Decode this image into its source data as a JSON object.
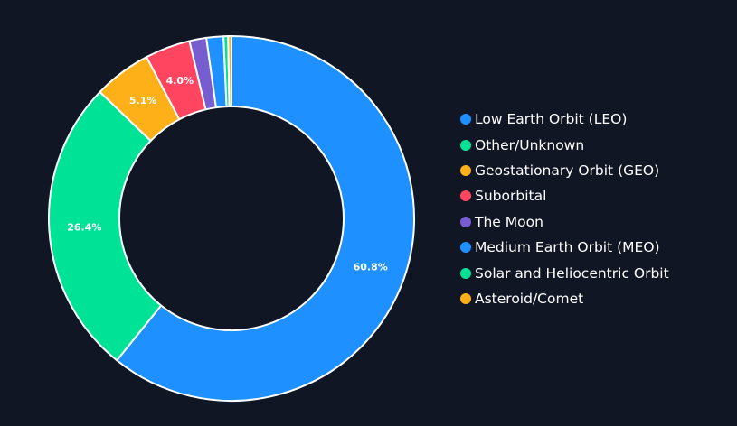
{
  "chart_data": {
    "type": "pie",
    "title": "",
    "categories": [
      "Low Earth Orbit (LEO)",
      "Other/Unknown",
      "Geostationary Orbit (GEO)",
      "Suborbital",
      "The Moon",
      "Medium Earth Orbit (MEO)",
      "Solar and Heliocentric Orbit",
      "Asteroid/Comet"
    ],
    "values": [
      60.8,
      26.4,
      5.1,
      4.0,
      1.5,
      1.5,
      0.4,
      0.3
    ],
    "data_labels": [
      "60.8%",
      "26.4%",
      "5.1%",
      "4.0%",
      "",
      "",
      "",
      ""
    ],
    "colors": [
      "#1e90ff",
      "#00e396",
      "#feb019",
      "#ff4560",
      "#775dd0",
      "#1e90ff",
      "#00e396",
      "#feb019"
    ],
    "legend_position": "right"
  },
  "colors": {
    "background": "#111624",
    "slice_border": "#ffffff",
    "text": "#ffffff"
  }
}
